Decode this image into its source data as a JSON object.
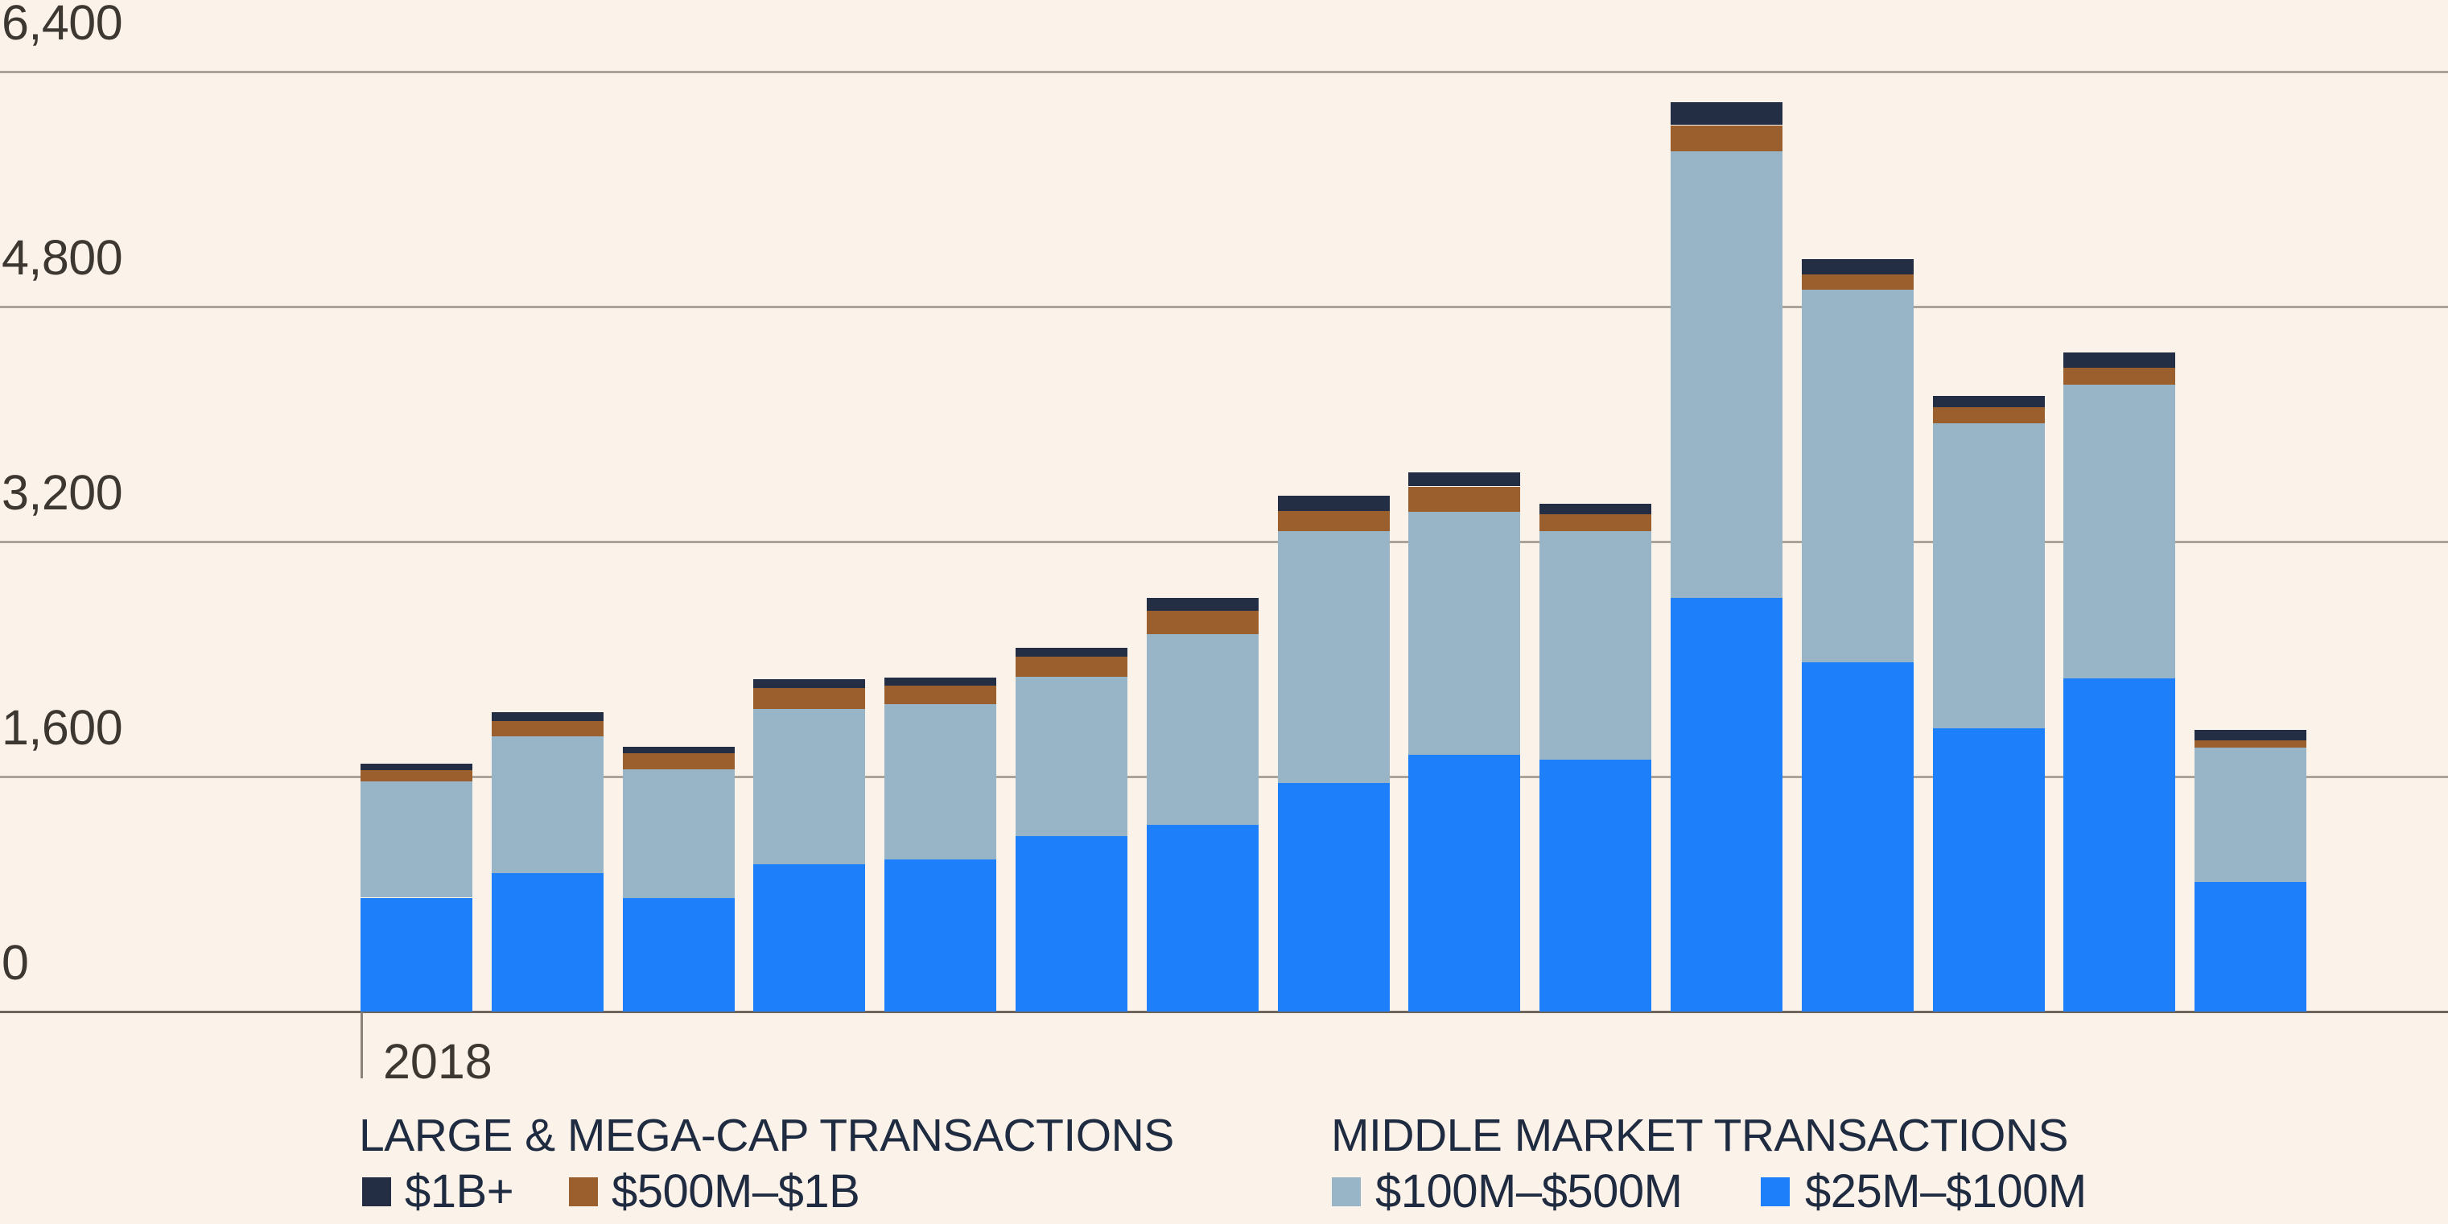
{
  "chart_data": {
    "type": "bar",
    "stacked": true,
    "title": "",
    "grid": true,
    "legend_position": "bottom",
    "x_first_tick_label": "2018",
    "yaxis": {
      "ylim": [
        0,
        6650
      ],
      "ticks": [
        {
          "value": 0,
          "label": "0"
        },
        {
          "value": 1600,
          "label": "1,600"
        },
        {
          "value": 3200,
          "label": "3,200"
        },
        {
          "value": 4800,
          "label": "4,800"
        },
        {
          "value": 6400,
          "label": "6,400"
        }
      ]
    },
    "series": [
      {
        "name": "$25M–$100M",
        "group": "MIDDLE MARKET TRANSACTIONS",
        "color": "#1e7ffb",
        "values": [
          775,
          945,
          775,
          1005,
          1040,
          1195,
          1270,
          1555,
          1750,
          1715,
          2820,
          2380,
          1930,
          2270,
          880
        ]
      },
      {
        "name": "$100M–$500M",
        "group": "MIDDLE MARKET TRANSACTIONS",
        "color": "#98b4c7",
        "values": [
          795,
          930,
          875,
          1055,
          1055,
          1085,
          1300,
          1720,
          1655,
          1555,
          3040,
          2535,
          2075,
          2000,
          915
        ]
      },
      {
        "name": "$500M–$1B",
        "group": "LARGE & MEGA-CAP TRANSACTIONS",
        "color": "#9a5f2d",
        "values": [
          75,
          105,
          110,
          145,
          125,
          135,
          160,
          135,
          170,
          115,
          175,
          105,
          110,
          115,
          55
        ]
      },
      {
        "name": "$1B+",
        "group": "LARGE & MEGA-CAP TRANSACTIONS",
        "color": "#232e44",
        "values": [
          45,
          60,
          45,
          60,
          55,
          60,
          85,
          105,
          95,
          70,
          155,
          105,
          75,
          105,
          70
        ]
      }
    ]
  },
  "x_axis": {
    "first_tick_label": "2018"
  },
  "legend": {
    "groups": [
      {
        "title": "LARGE & MEGA-CAP TRANSACTIONS",
        "items": [
          {
            "label": "$1B+",
            "color": "#232e44"
          },
          {
            "label": "$500M–$1B",
            "color": "#9a5f2d"
          }
        ]
      },
      {
        "title": "MIDDLE MARKET TRANSACTIONS",
        "items": [
          {
            "label": "$100M–$500M",
            "color": "#98b4c7"
          },
          {
            "label": "$25M–$100M",
            "color": "#1e7ffb"
          }
        ]
      }
    ]
  },
  "colors": {
    "background": "#fbf2e9",
    "gridline": "#aca399",
    "baseline": "#6f655c",
    "axis_text": "#3d3732",
    "legend_text": "#1f2b41"
  }
}
